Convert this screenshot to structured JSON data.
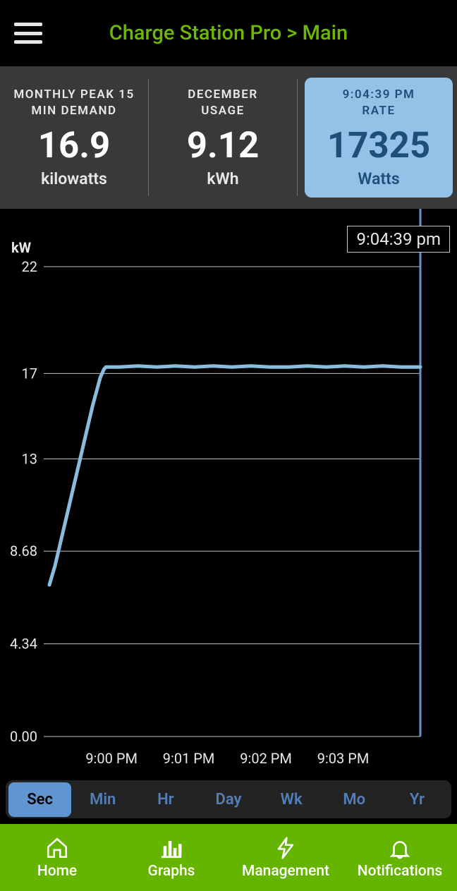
{
  "header": {
    "title": "Charge Station Pro > Main",
    "title_color": "#6db800"
  },
  "stats": [
    {
      "label_line1": "MONTHLY PEAK 15",
      "label_line2": "MIN DEMAND",
      "value": "16.9",
      "unit": "kilowatts",
      "highlight": false
    },
    {
      "label_line1": "DECEMBER",
      "label_line2": "USAGE",
      "value": "9.12",
      "unit": "kWh",
      "highlight": false
    },
    {
      "label_line1": "9:04:39 PM",
      "label_line2": "RATE",
      "value": "17325",
      "unit": "Watts",
      "highlight": true
    }
  ],
  "chart": {
    "type": "line",
    "y_axis_label": "kW",
    "y_ticks": [
      0.0,
      4.34,
      8.68,
      13,
      17,
      22
    ],
    "y_tick_labels": [
      "0.00",
      "4.34",
      "8.68",
      "13",
      "17",
      "22"
    ],
    "ylim": [
      0,
      22
    ],
    "x_tick_labels": [
      "9:00 PM",
      "9:01 PM",
      "9:02 PM",
      "9:03 PM"
    ],
    "x_tick_positions": [
      0.18,
      0.385,
      0.59,
      0.795
    ],
    "now_marker_x": 1.0,
    "now_marker_color": "#5f95d1",
    "time_badge": "9:04:39 pm",
    "line_color": "#8abce0",
    "line_width": 5,
    "grid_color": "#c2c2c2",
    "background_color": "#000000",
    "data": [
      {
        "x": 0.015,
        "y": 7.1
      },
      {
        "x": 0.03,
        "y": 8.0
      },
      {
        "x": 0.05,
        "y": 9.5
      },
      {
        "x": 0.07,
        "y": 11.0
      },
      {
        "x": 0.09,
        "y": 12.5
      },
      {
        "x": 0.11,
        "y": 14.0
      },
      {
        "x": 0.13,
        "y": 15.5
      },
      {
        "x": 0.15,
        "y": 16.8
      },
      {
        "x": 0.16,
        "y": 17.2
      },
      {
        "x": 0.165,
        "y": 17.3
      },
      {
        "x": 0.2,
        "y": 17.3
      },
      {
        "x": 0.25,
        "y": 17.35
      },
      {
        "x": 0.3,
        "y": 17.3
      },
      {
        "x": 0.35,
        "y": 17.35
      },
      {
        "x": 0.4,
        "y": 17.3
      },
      {
        "x": 0.45,
        "y": 17.35
      },
      {
        "x": 0.5,
        "y": 17.3
      },
      {
        "x": 0.55,
        "y": 17.35
      },
      {
        "x": 0.6,
        "y": 17.3
      },
      {
        "x": 0.65,
        "y": 17.3
      },
      {
        "x": 0.7,
        "y": 17.35
      },
      {
        "x": 0.75,
        "y": 17.3
      },
      {
        "x": 0.8,
        "y": 17.35
      },
      {
        "x": 0.85,
        "y": 17.3
      },
      {
        "x": 0.9,
        "y": 17.35
      },
      {
        "x": 0.95,
        "y": 17.3
      },
      {
        "x": 1.0,
        "y": 17.3
      }
    ]
  },
  "time_tabs": [
    "Sec",
    "Min",
    "Hr",
    "Day",
    "Wk",
    "Mo",
    "Yr"
  ],
  "time_tab_active": 0,
  "bottom_nav": [
    {
      "label": "Home",
      "icon": "home"
    },
    {
      "label": "Graphs",
      "icon": "bars"
    },
    {
      "label": "Management",
      "icon": "bolt"
    },
    {
      "label": "Notifications",
      "icon": "bell"
    }
  ]
}
